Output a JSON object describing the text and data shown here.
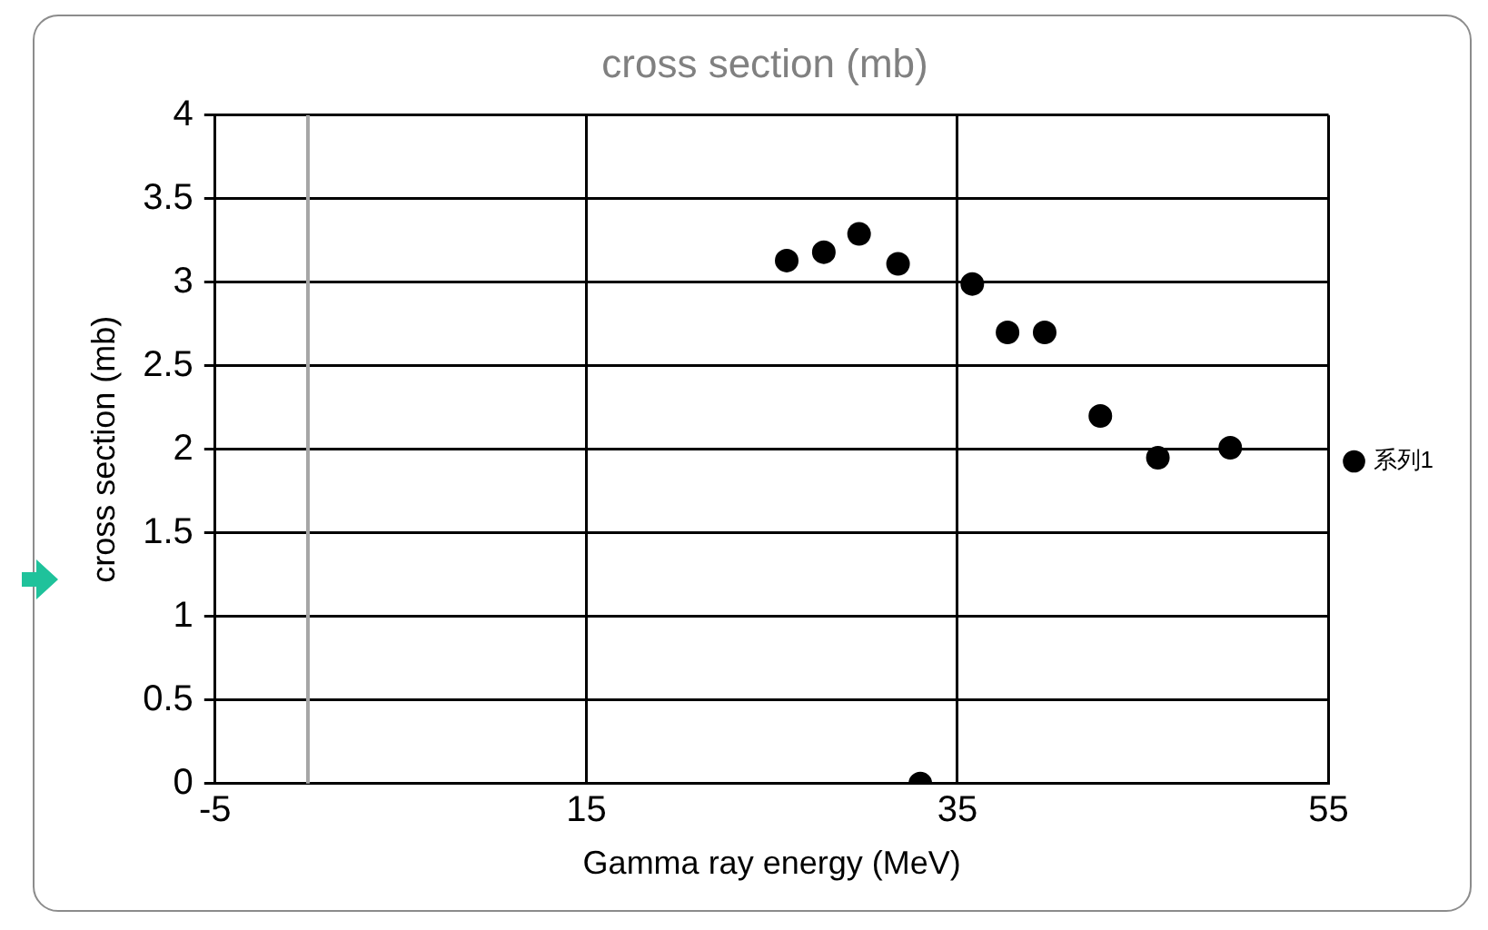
{
  "chart_data": {
    "type": "scatter",
    "title": "cross section (mb)",
    "xlabel": "Gamma ray energy (MeV)",
    "ylabel": "cross section (mb)",
    "x": [
      25.8,
      27.8,
      29.7,
      31.8,
      33.0,
      35.8,
      37.7,
      39.7,
      42.7,
      45.8,
      49.7
    ],
    "series": [
      {
        "name": "系列1",
        "color": "#000000",
        "values": [
          3.13,
          3.18,
          3.29,
          3.11,
          0,
          2.99,
          2.7,
          2.7,
          2.2,
          1.95,
          2.01
        ]
      }
    ],
    "xlim": [
      -5,
      55
    ],
    "xticks": [
      -5,
      15,
      35,
      55
    ],
    "ylim": [
      0,
      4
    ],
    "yticks": [
      0,
      0.5,
      1,
      1.5,
      2,
      2.5,
      3,
      3.5,
      4
    ],
    "ref_lines": [
      {
        "axis": "x",
        "value": 0,
        "color": "#a6a6a6"
      }
    ],
    "grid": true,
    "legend": "right",
    "marker": "circle"
  }
}
